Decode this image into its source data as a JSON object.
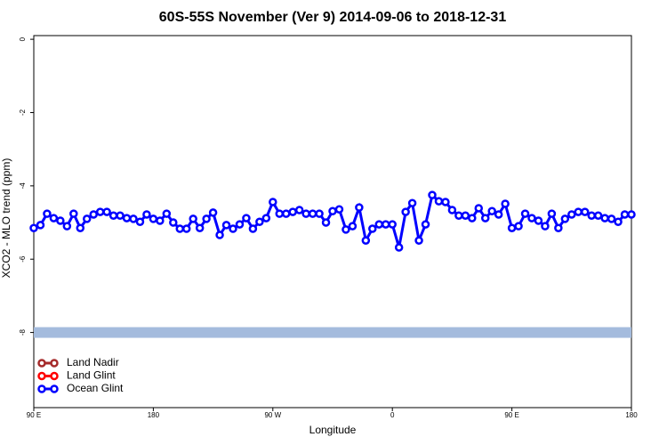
{
  "chart_data": {
    "type": "line",
    "title": "60S-55S November (Ver 9)   2014-09-06 to 2018-12-31",
    "xlabel": "Longitude",
    "ylabel": "XCO2 - MLO trend (ppm)",
    "xlim": [
      90,
      540
    ],
    "ylim": [
      -10.05,
      0.1
    ],
    "xticks": [
      {
        "value": 90,
        "label": "90 E"
      },
      180,
      {
        "value": 270,
        "label": "90 W"
      },
      {
        "value": 360,
        "label": "0"
      },
      {
        "value": 450,
        "label": "90 E"
      },
      {
        "value": 540,
        "label": "180"
      }
    ],
    "yticks": [
      0,
      -2,
      -4,
      -6,
      -8
    ],
    "reference_band": {
      "value": -8,
      "color": "#a4bbdd"
    },
    "legend": "lower left",
    "x": [
      90,
      95,
      100,
      105,
      110,
      115,
      120,
      125,
      130,
      135,
      140,
      145,
      150,
      155,
      160,
      165,
      170,
      175,
      180,
      185,
      190,
      195,
      200,
      205,
      210,
      215,
      220,
      225,
      230,
      235,
      240,
      245,
      250,
      255,
      260,
      265,
      270,
      275,
      280,
      285,
      290,
      295,
      300,
      305,
      310,
      315,
      320,
      325,
      330,
      335,
      340,
      345,
      350,
      355,
      360,
      365,
      370,
      375,
      380,
      385,
      390,
      395,
      400,
      405,
      410,
      415,
      420,
      425,
      430,
      435,
      440,
      445,
      450,
      455,
      460,
      465,
      470,
      475,
      480,
      485,
      490,
      495,
      500,
      505,
      510,
      515,
      520,
      525,
      530,
      535,
      540
    ],
    "series": [
      {
        "name": "Land Nadir",
        "color": "#a52a2a"
      },
      {
        "name": "Land Glint",
        "color": "#ff0000"
      },
      {
        "name": "Ocean Glint",
        "color": "#0000ff",
        "values": [
          -5.15,
          -5.07,
          -4.76,
          -4.88,
          -4.95,
          -5.1,
          -4.76,
          -5.15,
          -4.9,
          -4.78,
          -4.71,
          -4.71,
          -4.81,
          -4.81,
          -4.88,
          -4.9,
          -4.98,
          -4.78,
          -4.9,
          -4.95,
          -4.76,
          -5.0,
          -5.17,
          -5.17,
          -4.9,
          -5.15,
          -4.9,
          -4.73,
          -5.34,
          -5.07,
          -5.17,
          -5.05,
          -4.88,
          -5.17,
          -4.98,
          -4.88,
          -4.44,
          -4.76,
          -4.76,
          -4.71,
          -4.66,
          -4.76,
          -4.76,
          -4.76,
          -5.0,
          -4.69,
          -4.64,
          -5.19,
          -5.1,
          -4.59,
          -5.49,
          -5.17,
          -5.05,
          -5.05,
          -5.05,
          -5.68,
          -4.71,
          -4.47,
          -5.49,
          -5.05,
          -4.25,
          -4.42,
          -4.44,
          -4.66,
          -4.81,
          -4.81,
          -4.88,
          -4.61,
          -4.88,
          -4.69,
          -4.78,
          -4.49,
          -5.15,
          -5.1,
          -4.76,
          -4.88,
          -4.95,
          -5.1,
          -4.76,
          -5.15,
          -4.9,
          -4.78,
          -4.71,
          -4.71,
          -4.81,
          -4.81,
          -4.88,
          -4.9,
          -4.98,
          -4.78,
          -4.78
        ]
      }
    ]
  }
}
